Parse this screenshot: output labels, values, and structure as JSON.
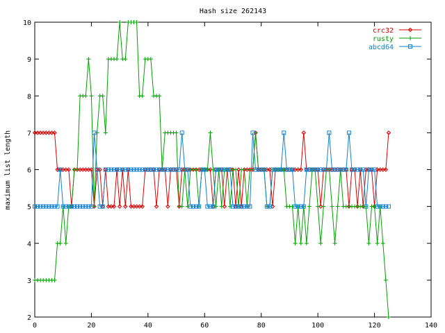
{
  "chart_data": {
    "type": "line",
    "title": "Hash size 262143",
    "xlabel": "",
    "ylabel": "maximum list length",
    "xlim": [
      0,
      140
    ],
    "ylim": [
      2,
      10
    ],
    "x_ticks": [
      "0",
      "20",
      "40",
      "60",
      "80",
      "100",
      "120",
      "140"
    ],
    "y_ticks": [
      "2",
      "3",
      "4",
      "5",
      "6",
      "7",
      "8",
      "9",
      "10"
    ],
    "grid": false,
    "legend_position": "top-right",
    "series": [
      {
        "name": "crc32",
        "color": "#e00000",
        "marker": "diamond",
        "x": [
          0,
          1,
          2,
          3,
          4,
          5,
          6,
          7,
          8,
          9,
          10,
          11,
          12,
          13,
          14,
          15,
          16,
          17,
          18,
          19,
          20,
          21,
          22,
          23,
          24,
          25,
          26,
          27,
          28,
          29,
          30,
          31,
          32,
          33,
          34,
          35,
          36,
          37,
          38,
          39,
          40,
          41,
          42,
          43,
          44,
          45,
          46,
          47,
          48,
          49,
          50,
          51,
          52,
          53,
          54,
          55,
          56,
          57,
          58,
          59,
          60,
          61,
          62,
          63,
          64,
          65,
          66,
          67,
          68,
          69,
          70,
          71,
          72,
          73,
          74,
          75,
          76,
          77,
          78,
          79,
          80,
          81,
          82,
          83,
          84,
          85,
          86,
          87,
          88,
          89,
          90,
          91,
          92,
          93,
          94,
          95,
          96,
          97,
          98,
          99,
          100,
          101,
          102,
          103,
          104,
          105,
          106,
          107,
          108,
          109,
          110,
          111,
          112,
          113,
          114,
          115,
          116,
          117,
          118,
          119,
          120,
          121,
          122,
          123,
          124,
          125
        ],
        "values": [
          7,
          7,
          7,
          7,
          7,
          7,
          7,
          7,
          6,
          6,
          6,
          6,
          6,
          5,
          6,
          6,
          6,
          6,
          6,
          6,
          6,
          5,
          6,
          6,
          5,
          6,
          5,
          5,
          5,
          6,
          5,
          6,
          5,
          6,
          5,
          5,
          5,
          5,
          5,
          6,
          6,
          6,
          6,
          5,
          6,
          6,
          6,
          5,
          6,
          6,
          6,
          5,
          6,
          6,
          6,
          6,
          6,
          6,
          6,
          6,
          6,
          6,
          6,
          5,
          6,
          6,
          6,
          5,
          6,
          6,
          6,
          5,
          6,
          5,
          6,
          6,
          6,
          6,
          7,
          6,
          6,
          6,
          6,
          6,
          5,
          6,
          6,
          6,
          6,
          6,
          6,
          6,
          6,
          6,
          6,
          7,
          6,
          6,
          6,
          6,
          6,
          5,
          6,
          6,
          6,
          6,
          6,
          6,
          6,
          6,
          6,
          5,
          6,
          6,
          5,
          6,
          5,
          6,
          6,
          6,
          5,
          6,
          6,
          6,
          6,
          7
        ]
      },
      {
        "name": "rusty",
        "color": "#00a000",
        "marker": "plus",
        "x": [
          0,
          1,
          2,
          3,
          4,
          5,
          6,
          7,
          8,
          9,
          10,
          11,
          12,
          13,
          14,
          15,
          16,
          17,
          18,
          19,
          20,
          21,
          22,
          23,
          24,
          25,
          26,
          27,
          28,
          29,
          30,
          31,
          32,
          33,
          34,
          35,
          36,
          37,
          38,
          39,
          40,
          41,
          42,
          43,
          44,
          45,
          46,
          47,
          48,
          49,
          50,
          51,
          52,
          53,
          54,
          55,
          56,
          57,
          58,
          59,
          60,
          61,
          62,
          63,
          64,
          65,
          66,
          67,
          68,
          69,
          70,
          71,
          72,
          73,
          74,
          75,
          76,
          77,
          78,
          79,
          80,
          81,
          82,
          83,
          84,
          85,
          86,
          87,
          88,
          89,
          90,
          91,
          92,
          93,
          94,
          95,
          96,
          97,
          98,
          99,
          100,
          101,
          102,
          103,
          104,
          105,
          106,
          107,
          108,
          109,
          110,
          111,
          112,
          113,
          114,
          115,
          116,
          117,
          118,
          119,
          120,
          121,
          122,
          123,
          124,
          125
        ],
        "values": [
          3,
          3,
          3,
          3,
          3,
          3,
          3,
          3,
          4,
          4,
          5,
          4,
          5,
          5,
          6,
          6,
          8,
          8,
          8,
          9,
          8,
          5,
          7,
          8,
          8,
          7,
          9,
          9,
          9,
          9,
          10,
          9,
          9,
          10,
          10,
          10,
          10,
          8,
          8,
          9,
          9,
          9,
          8,
          8,
          8,
          6,
          7,
          7,
          7,
          7,
          7,
          5,
          5,
          6,
          5,
          6,
          6,
          6,
          5,
          6,
          6,
          6,
          7,
          6,
          5,
          6,
          5,
          6,
          6,
          5,
          6,
          6,
          5,
          6,
          6,
          5,
          6,
          6,
          7,
          6,
          6,
          6,
          5,
          5,
          6,
          6,
          6,
          6,
          6,
          5,
          5,
          5,
          4,
          5,
          4,
          5,
          4,
          5,
          6,
          6,
          5,
          4,
          5,
          6,
          6,
          5,
          4,
          5,
          6,
          5,
          5,
          5,
          5,
          5,
          5,
          5,
          5,
          5,
          4,
          5,
          5,
          4,
          5,
          4,
          3,
          2
        ]
      },
      {
        "name": "abcd64",
        "color": "#1080d0",
        "marker": "square",
        "x": [
          0,
          1,
          2,
          3,
          4,
          5,
          6,
          7,
          8,
          9,
          10,
          11,
          12,
          13,
          14,
          15,
          16,
          17,
          18,
          19,
          20,
          21,
          22,
          23,
          24,
          25,
          26,
          27,
          28,
          29,
          30,
          31,
          32,
          33,
          34,
          35,
          36,
          37,
          38,
          39,
          40,
          41,
          42,
          43,
          44,
          45,
          46,
          47,
          48,
          49,
          50,
          51,
          52,
          53,
          54,
          55,
          56,
          57,
          58,
          59,
          60,
          61,
          62,
          63,
          64,
          65,
          66,
          67,
          68,
          69,
          70,
          71,
          72,
          73,
          74,
          75,
          76,
          77,
          78,
          79,
          80,
          81,
          82,
          83,
          84,
          85,
          86,
          87,
          88,
          89,
          90,
          91,
          92,
          93,
          94,
          95,
          96,
          97,
          98,
          99,
          100,
          101,
          102,
          103,
          104,
          105,
          106,
          107,
          108,
          109,
          110,
          111,
          112,
          113,
          114,
          115,
          116,
          117,
          118,
          119,
          120,
          121,
          122,
          123,
          124,
          125
        ],
        "values": [
          5,
          5,
          5,
          5,
          5,
          5,
          5,
          5,
          5,
          6,
          5,
          5,
          5,
          5,
          5,
          5,
          5,
          5,
          5,
          5,
          5,
          7,
          6,
          5,
          5,
          6,
          6,
          6,
          6,
          6,
          6,
          6,
          6,
          6,
          6,
          6,
          6,
          6,
          6,
          6,
          6,
          6,
          6,
          6,
          6,
          6,
          6,
          6,
          6,
          6,
          6,
          6,
          7,
          6,
          6,
          5,
          5,
          5,
          5,
          6,
          6,
          5,
          5,
          5,
          6,
          6,
          6,
          6,
          6,
          6,
          5,
          5,
          5,
          5,
          5,
          5,
          5,
          7,
          6,
          6,
          6,
          6,
          5,
          5,
          6,
          6,
          6,
          6,
          7,
          6,
          6,
          6,
          5,
          5,
          5,
          5,
          6,
          6,
          6,
          6,
          6,
          6,
          6,
          6,
          7,
          6,
          6,
          6,
          6,
          6,
          6,
          7,
          6,
          6,
          6,
          6,
          6,
          5,
          6,
          6,
          6,
          5,
          5,
          5,
          5,
          5
        ]
      }
    ]
  }
}
